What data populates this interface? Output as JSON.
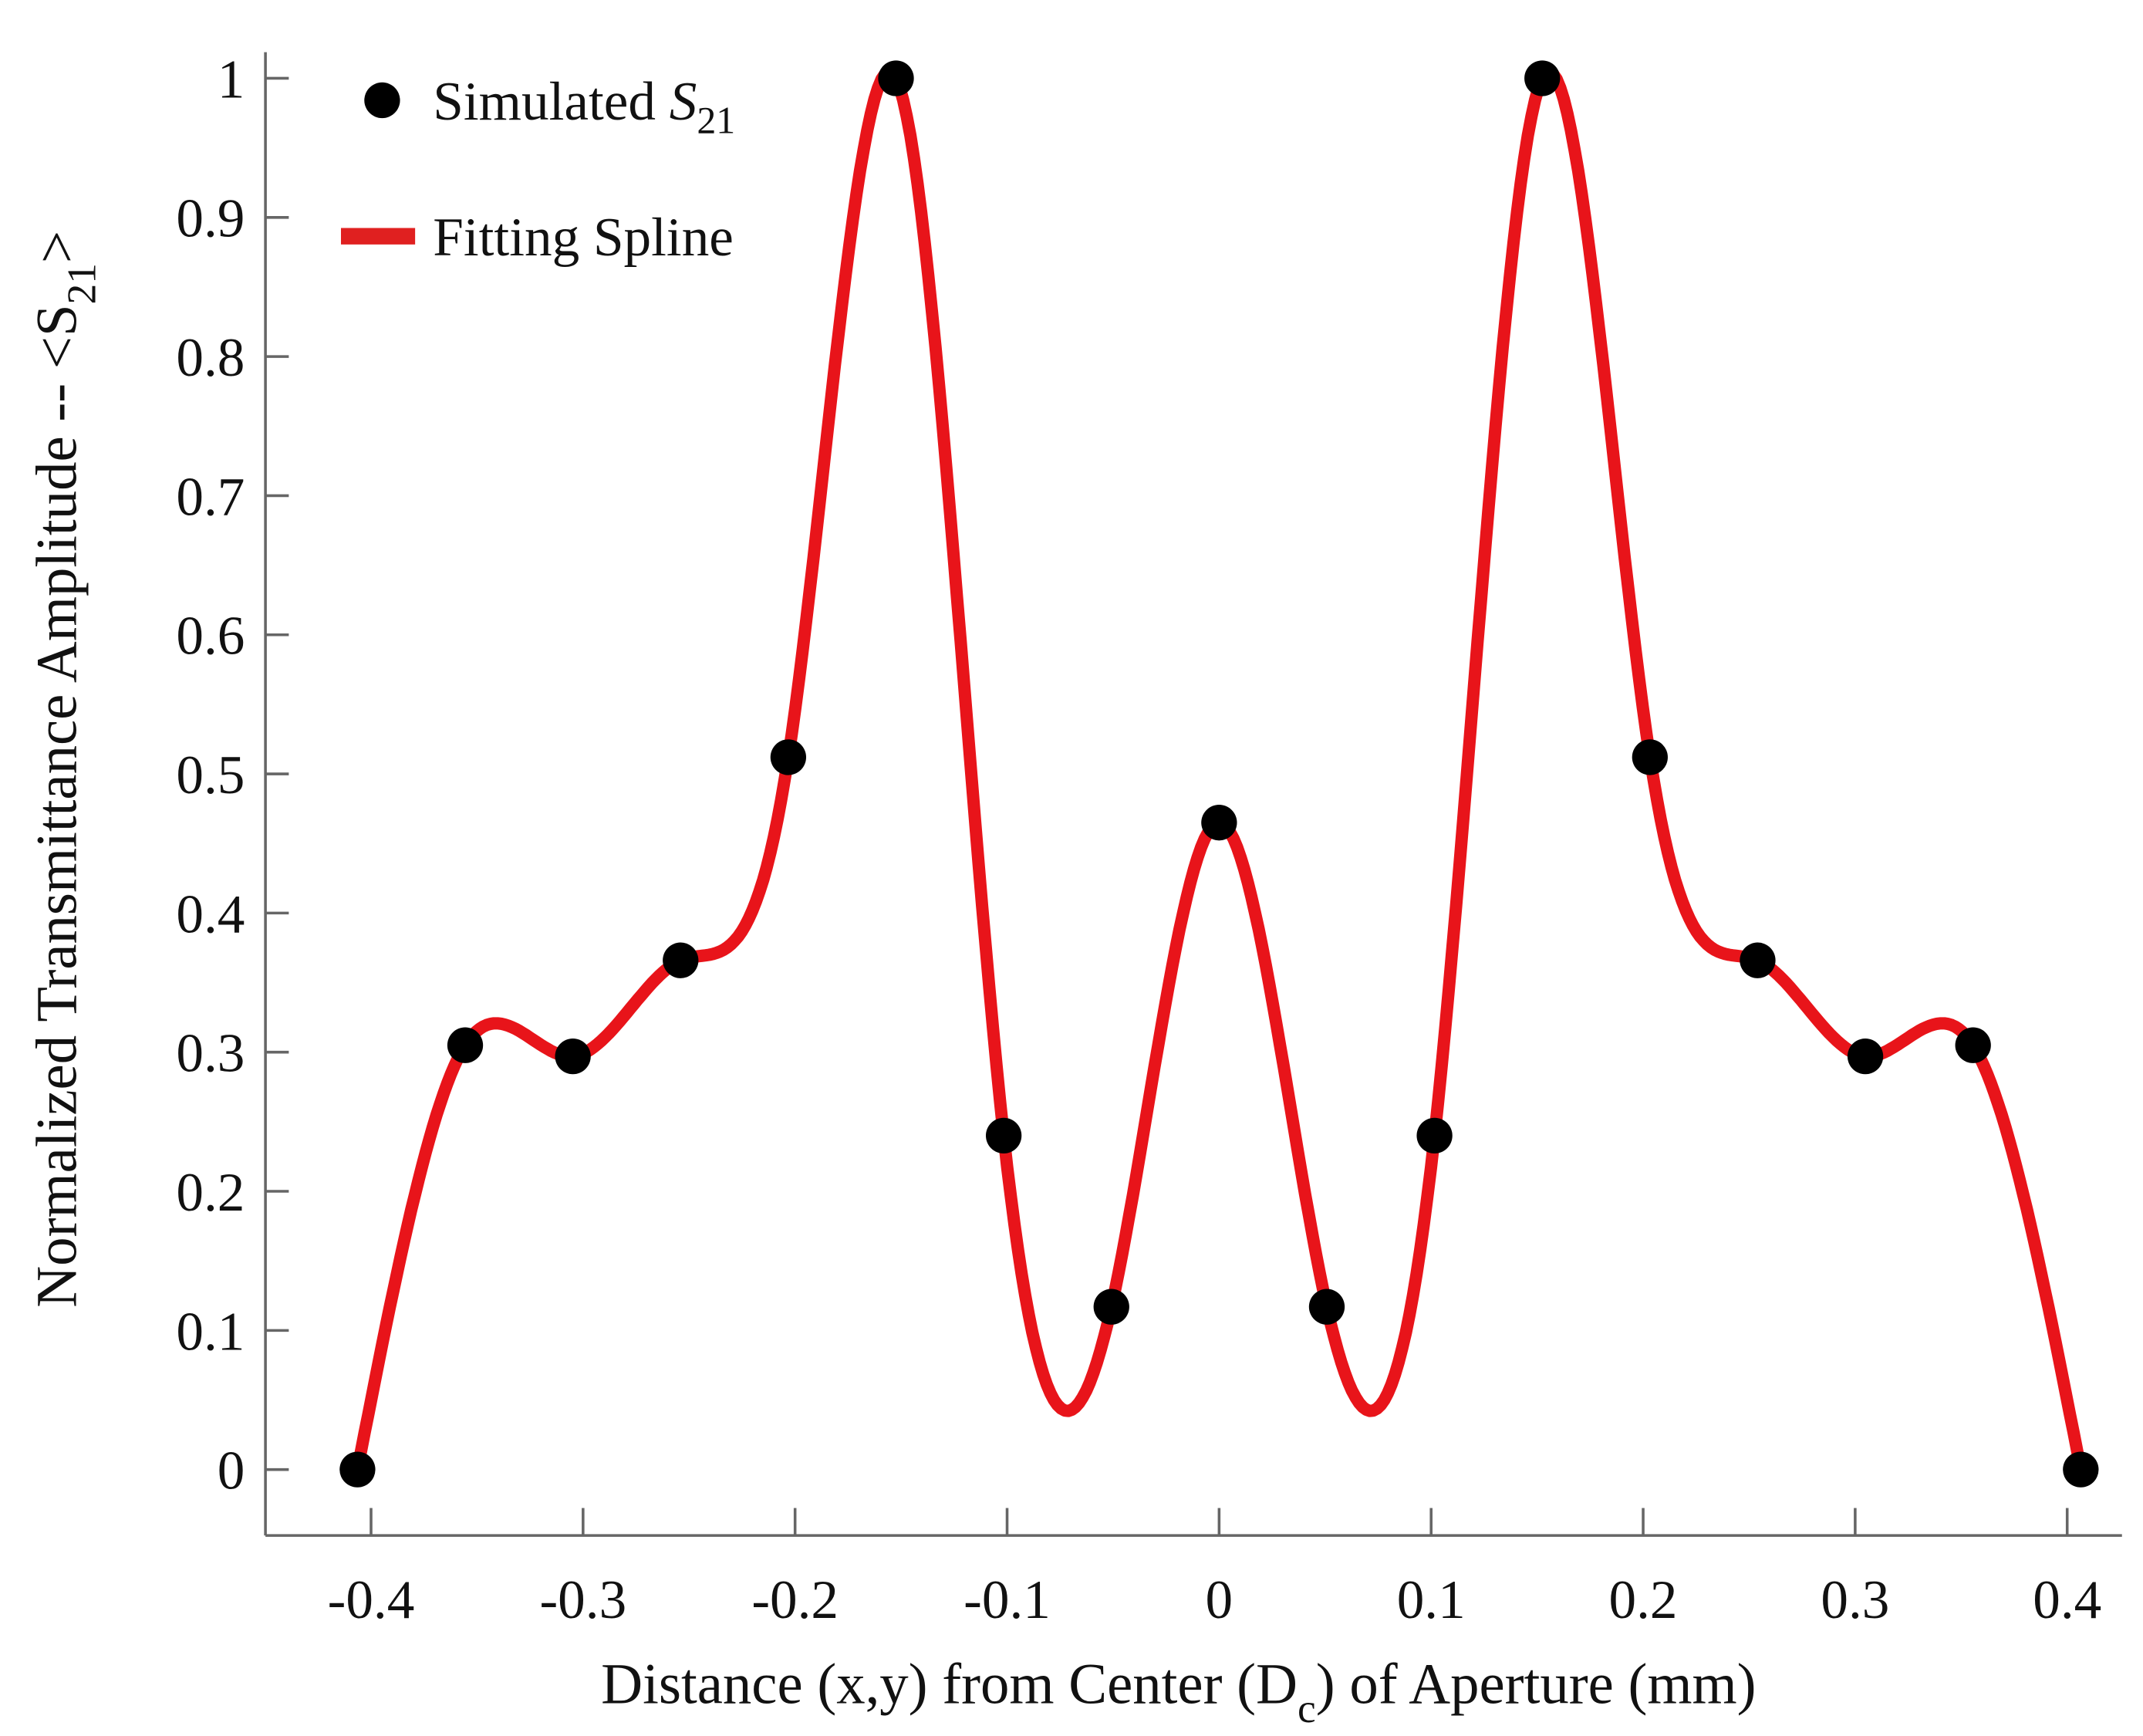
{
  "chart_data": {
    "type": "line",
    "title": "",
    "xlabel": "Distance (x,y) from Center (D_c) of Aperture (mm)",
    "xlabel_parts": {
      "pre": "Distance (x,y) from Center (D",
      "sub": "c",
      "post": ") of Aperture (mm)"
    },
    "ylabel": "Normalized Transmittance Amplitude -- <S_21>",
    "ylabel_parts": {
      "pre": "Normalized Transmittance Amplitude -- <S",
      "sub": "21",
      "post": ">"
    },
    "xlim": [
      -0.45,
      0.425
    ],
    "ylim": [
      -0.05,
      1.02
    ],
    "xticks": [
      "-0.4",
      "-0.3",
      "-0.2",
      "-0.1",
      "0",
      "0.1",
      "0.2",
      "0.3",
      "0.4"
    ],
    "xtick_values": [
      -0.4,
      -0.3,
      -0.2,
      -0.1,
      0,
      0.1,
      0.2,
      0.3,
      0.4
    ],
    "yticks": [
      "0",
      "0.1",
      "0.2",
      "0.3",
      "0.4",
      "0.5",
      "0.6",
      "0.7",
      "0.8",
      "0.9",
      "1"
    ],
    "ytick_values": [
      0,
      0.1,
      0.2,
      0.3,
      0.4,
      0.5,
      0.6,
      0.7,
      0.8,
      0.9,
      1
    ],
    "grid": false,
    "legend_placement": "top-left",
    "series": [
      {
        "name": "Simulated S21",
        "legend_parts": {
          "pre": "Simulated ",
          "main": "S",
          "sub": "21"
        },
        "kind": "scatter",
        "color": "#000000",
        "x": [
          -0.4064,
          -0.3556,
          -0.3048,
          -0.254,
          -0.2032,
          -0.1524,
          -0.1016,
          -0.0508,
          0,
          0.0508,
          0.1016,
          0.1524,
          0.2032,
          0.254,
          0.3048,
          0.3556,
          0.4064
        ],
        "y": [
          0,
          0.305,
          0.297,
          0.366,
          0.512,
          1.0,
          0.24,
          0.117,
          0.465,
          0.117,
          0.24,
          1.0,
          0.512,
          0.366,
          0.297,
          0.305,
          0
        ]
      },
      {
        "name": "Fitting Spline",
        "kind": "line",
        "color": "#e8141a",
        "interpolation": "cubic spline through Simulated S21 points"
      }
    ]
  }
}
